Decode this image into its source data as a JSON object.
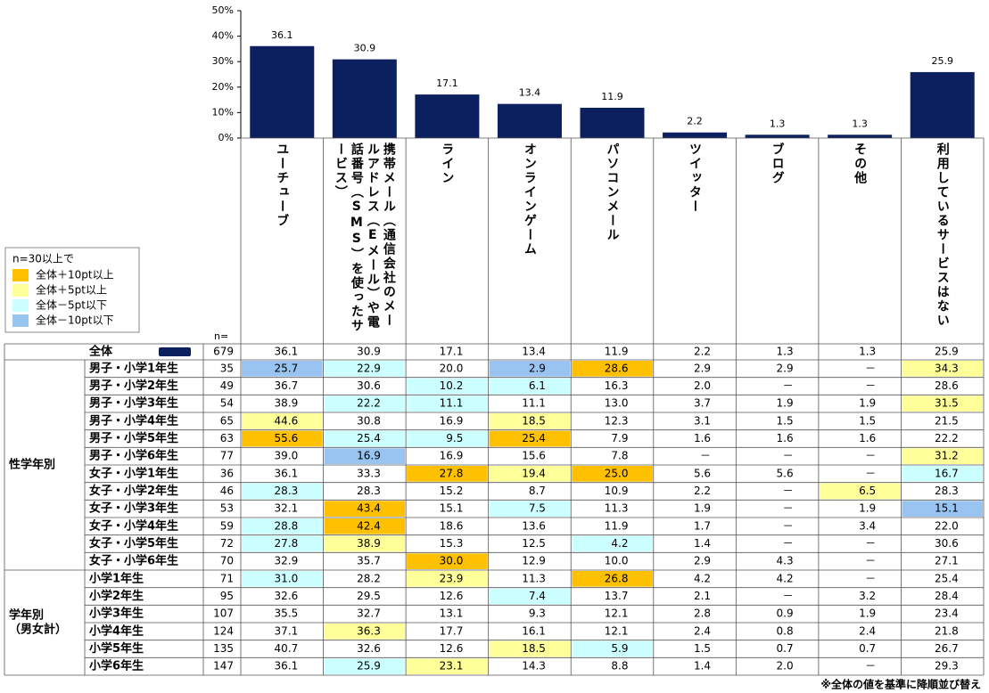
{
  "chart_data": {
    "type": "bar",
    "categories": [
      "ユーチューブ",
      "携帯メール（通信会社のメールアドレス（Eメール）や電話番号（SMS）を使ったサービス）",
      "ライン",
      "オンラインゲーム",
      "パソコンメール",
      "ツイッター",
      "ブログ",
      "その他",
      "利用しているサービスはない"
    ],
    "values": [
      36.1,
      30.9,
      17.1,
      13.4,
      11.9,
      2.2,
      1.3,
      1.3,
      25.9
    ],
    "color": "#0c1f5e",
    "ylim": [
      0,
      50
    ],
    "yticks": [
      {
        "value": 0,
        "label": "0%"
      },
      {
        "value": 10,
        "label": "10%"
      },
      {
        "value": 20,
        "label": "20%"
      },
      {
        "value": 30,
        "label": "30%"
      },
      {
        "value": 40,
        "label": "40%"
      },
      {
        "value": 50,
        "label": "50%"
      }
    ]
  },
  "legend": {
    "title": "n=30以上で",
    "items": [
      {
        "label": "全体＋10pt以上",
        "color": "#ffc000"
      },
      {
        "label": "全体＋5pt以上",
        "color": "#ffff99"
      },
      {
        "label": "全体－5pt以下",
        "color": "#ccffff"
      },
      {
        "label": "全体－10pt以下",
        "color": "#99c3f0"
      }
    ]
  },
  "table": {
    "n_header": "n=",
    "total": {
      "label": "全体",
      "n": 679,
      "cells": [
        "36.1",
        "30.9",
        "17.1",
        "13.4",
        "11.9",
        "2.2",
        "1.3",
        "1.3",
        "25.9"
      ]
    },
    "groups": [
      {
        "label": [
          "性学年別"
        ],
        "rows": [
          {
            "label": "男子・小学1年生",
            "n": 35,
            "cells": [
              "25.7",
              "22.9",
              "20.0",
              "2.9",
              "28.6",
              "2.9",
              "2.9",
              "－",
              "34.3"
            ],
            "colors": [
              "#99c3f0",
              "#ccffff",
              null,
              "#99c3f0",
              "#ffc000",
              null,
              null,
              null,
              "#ffff99"
            ]
          },
          {
            "label": "男子・小学2年生",
            "n": 49,
            "cells": [
              "36.7",
              "30.6",
              "10.2",
              "6.1",
              "16.3",
              "2.0",
              "－",
              "－",
              "28.6"
            ],
            "colors": [
              null,
              null,
              "#ccffff",
              "#ccffff",
              null,
              null,
              null,
              null,
              null
            ]
          },
          {
            "label": "男子・小学3年生",
            "n": 54,
            "cells": [
              "38.9",
              "22.2",
              "11.1",
              "11.1",
              "13.0",
              "3.7",
              "1.9",
              "1.9",
              "31.5"
            ],
            "colors": [
              null,
              "#ccffff",
              "#ccffff",
              null,
              null,
              null,
              null,
              null,
              "#ffff99"
            ]
          },
          {
            "label": "男子・小学4年生",
            "n": 65,
            "cells": [
              "44.6",
              "30.8",
              "16.9",
              "18.5",
              "12.3",
              "3.1",
              "1.5",
              "1.5",
              "21.5"
            ],
            "colors": [
              "#ffff99",
              null,
              null,
              "#ffff99",
              null,
              null,
              null,
              null,
              null
            ]
          },
          {
            "label": "男子・小学5年生",
            "n": 63,
            "cells": [
              "55.6",
              "25.4",
              "9.5",
              "25.4",
              "7.9",
              "1.6",
              "1.6",
              "1.6",
              "22.2"
            ],
            "colors": [
              "#ffc000",
              "#ccffff",
              "#ccffff",
              "#ffc000",
              null,
              null,
              null,
              null,
              null
            ]
          },
          {
            "label": "男子・小学6年生",
            "n": 77,
            "cells": [
              "39.0",
              "16.9",
              "16.9",
              "15.6",
              "7.8",
              "－",
              "－",
              "－",
              "31.2"
            ],
            "colors": [
              null,
              "#99c3f0",
              null,
              null,
              null,
              null,
              null,
              null,
              "#ffff99"
            ]
          },
          {
            "label": "女子・小学1年生",
            "n": 36,
            "cells": [
              "36.1",
              "33.3",
              "27.8",
              "19.4",
              "25.0",
              "5.6",
              "5.6",
              "－",
              "16.7"
            ],
            "colors": [
              null,
              null,
              "#ffc000",
              "#ffff99",
              "#ffc000",
              null,
              null,
              null,
              "#ccffff"
            ]
          },
          {
            "label": "女子・小学2年生",
            "n": 46,
            "cells": [
              "28.3",
              "28.3",
              "15.2",
              "8.7",
              "10.9",
              "2.2",
              "－",
              "6.5",
              "28.3"
            ],
            "colors": [
              "#ccffff",
              null,
              null,
              null,
              null,
              null,
              null,
              "#ffff99",
              null
            ]
          },
          {
            "label": "女子・小学3年生",
            "n": 53,
            "cells": [
              "32.1",
              "43.4",
              "15.1",
              "7.5",
              "11.3",
              "1.9",
              "－",
              "1.9",
              "15.1"
            ],
            "colors": [
              null,
              "#ffc000",
              null,
              "#ccffff",
              null,
              null,
              null,
              null,
              "#99c3f0"
            ]
          },
          {
            "label": "女子・小学4年生",
            "n": 59,
            "cells": [
              "28.8",
              "42.4",
              "18.6",
              "13.6",
              "11.9",
              "1.7",
              "－",
              "3.4",
              "22.0"
            ],
            "colors": [
              "#ccffff",
              "#ffc000",
              null,
              null,
              null,
              null,
              null,
              null,
              null
            ]
          },
          {
            "label": "女子・小学5年生",
            "n": 72,
            "cells": [
              "27.8",
              "38.9",
              "15.3",
              "12.5",
              "4.2",
              "1.4",
              "－",
              "－",
              "30.6"
            ],
            "colors": [
              "#ccffff",
              "#ffff99",
              null,
              null,
              "#ccffff",
              null,
              null,
              null,
              null
            ]
          },
          {
            "label": "女子・小学6年生",
            "n": 70,
            "cells": [
              "32.9",
              "35.7",
              "30.0",
              "12.9",
              "10.0",
              "2.9",
              "4.3",
              "－",
              "27.1"
            ],
            "colors": [
              null,
              null,
              "#ffc000",
              null,
              null,
              null,
              null,
              null,
              null
            ]
          }
        ]
      },
      {
        "label": [
          "学年別",
          "（男女計）"
        ],
        "rows": [
          {
            "label": "小学1年生",
            "n": 71,
            "cells": [
              "31.0",
              "28.2",
              "23.9",
              "11.3",
              "26.8",
              "4.2",
              "4.2",
              "－",
              "25.4"
            ],
            "colors": [
              "#ccffff",
              null,
              "#ffff99",
              null,
              "#ffc000",
              null,
              null,
              null,
              null
            ]
          },
          {
            "label": "小学2年生",
            "n": 95,
            "cells": [
              "32.6",
              "29.5",
              "12.6",
              "7.4",
              "13.7",
              "2.1",
              "－",
              "3.2",
              "28.4"
            ],
            "colors": [
              null,
              null,
              null,
              "#ccffff",
              null,
              null,
              null,
              null,
              null
            ]
          },
          {
            "label": "小学3年生",
            "n": 107,
            "cells": [
              "35.5",
              "32.7",
              "13.1",
              "9.3",
              "12.1",
              "2.8",
              "0.9",
              "1.9",
              "23.4"
            ],
            "colors": [
              null,
              null,
              null,
              null,
              null,
              null,
              null,
              null,
              null
            ]
          },
          {
            "label": "小学4年生",
            "n": 124,
            "cells": [
              "37.1",
              "36.3",
              "17.7",
              "16.1",
              "12.1",
              "2.4",
              "0.8",
              "2.4",
              "21.8"
            ],
            "colors": [
              null,
              "#ffff99",
              null,
              null,
              null,
              null,
              null,
              null,
              null
            ]
          },
          {
            "label": "小学5年生",
            "n": 135,
            "cells": [
              "40.7",
              "32.6",
              "12.6",
              "18.5",
              "5.9",
              "1.5",
              "0.7",
              "0.7",
              "26.7"
            ],
            "colors": [
              null,
              null,
              null,
              "#ffff99",
              "#ccffff",
              null,
              null,
              null,
              null
            ]
          },
          {
            "label": "小学6年生",
            "n": 147,
            "cells": [
              "36.1",
              "25.9",
              "23.1",
              "14.3",
              "8.8",
              "1.4",
              "2.0",
              "－",
              "29.3"
            ],
            "colors": [
              null,
              "#ccffff",
              "#ffff99",
              null,
              null,
              null,
              null,
              null,
              null
            ]
          }
        ]
      }
    ]
  },
  "footnote": "※全体の値を基準に降順並び替え"
}
